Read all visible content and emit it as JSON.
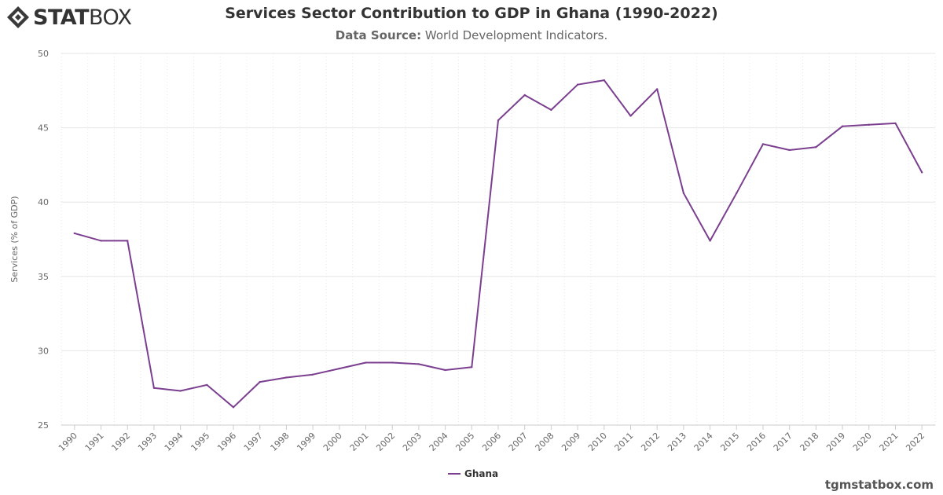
{
  "brand": {
    "logo_part1": "STAT",
    "logo_part2": "BOX",
    "footer_url": "tgmstatbox.com"
  },
  "header": {
    "title": "Services Sector Contribution to GDP in Ghana (1990-2022)",
    "source_label": "Data Source:",
    "source_value": "World Development Indicators."
  },
  "colors": {
    "series": "#7b3f8f",
    "grid": "#e6e6e6",
    "text": "#333333",
    "muted": "#666666"
  },
  "chart_data": {
    "type": "line",
    "title": "Services Sector Contribution to GDP in Ghana (1990-2022)",
    "xlabel": "",
    "ylabel": "Services (% of GDP)",
    "ylim": [
      25,
      50
    ],
    "yticks": [
      25,
      30,
      35,
      40,
      45,
      50
    ],
    "grid": true,
    "legend_position": "bottom-center",
    "categories": [
      "1990",
      "1991",
      "1992",
      "1993",
      "1994",
      "1995",
      "1996",
      "1997",
      "1998",
      "1999",
      "2000",
      "2001",
      "2002",
      "2003",
      "2004",
      "2005",
      "2006",
      "2007",
      "2008",
      "2009",
      "2010",
      "2011",
      "2012",
      "2013",
      "2014",
      "2015",
      "2016",
      "2017",
      "2018",
      "2019",
      "2020",
      "2021",
      "2022"
    ],
    "series": [
      {
        "name": "Ghana",
        "values": [
          37.9,
          37.4,
          37.4,
          27.5,
          27.3,
          27.7,
          26.2,
          27.9,
          28.2,
          28.4,
          28.8,
          29.2,
          29.2,
          29.1,
          28.7,
          28.9,
          45.5,
          47.2,
          46.2,
          47.9,
          48.2,
          45.8,
          47.6,
          40.6,
          37.4,
          40.6,
          43.9,
          43.5,
          43.7,
          45.1,
          45.2,
          45.3,
          42.0
        ]
      }
    ]
  }
}
